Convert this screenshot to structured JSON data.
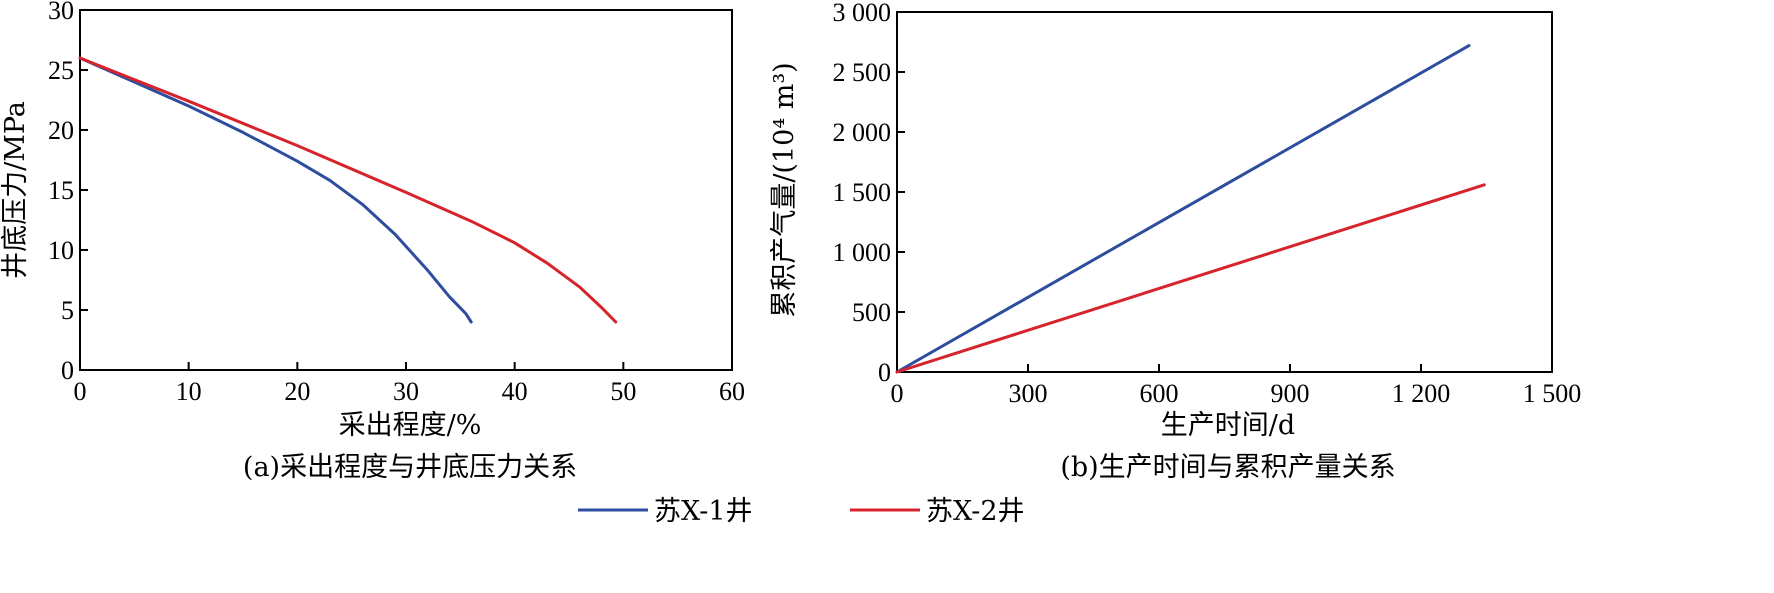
{
  "colors": {
    "series1": "#2f4d9e",
    "series2": "#d7232c"
  },
  "legend": [
    {
      "name": "苏X-1井",
      "color": "#2f4d9e"
    },
    {
      "name": "苏X-2井",
      "color": "#d7232c"
    }
  ],
  "chart_data": [
    {
      "type": "line",
      "caption": "(a)采出程度与井底压力关系",
      "xlabel": "采出程度/%",
      "ylabel": "井底压力/MPa",
      "xlim": [
        0,
        60
      ],
      "ylim": [
        0,
        30
      ],
      "xticks": [
        0,
        10,
        20,
        30,
        40,
        50,
        60
      ],
      "yticks": [
        0,
        5,
        10,
        15,
        20,
        25,
        30
      ],
      "xtick_labels": [
        "0",
        "10",
        "20",
        "30",
        "40",
        "50",
        "60"
      ],
      "ytick_labels": [
        "0",
        "5",
        "10",
        "15",
        "20",
        "25",
        "30"
      ],
      "series": [
        {
          "name": "苏X-1井",
          "x": [
            0,
            5,
            10,
            15,
            20,
            23,
            26,
            29,
            32,
            34,
            35.5,
            36
          ],
          "y": [
            26,
            24,
            22,
            19.8,
            17.4,
            15.8,
            13.8,
            11.3,
            8.3,
            6.1,
            4.7,
            4
          ]
        },
        {
          "name": "苏X-2井",
          "x": [
            0,
            10,
            20,
            30,
            36,
            40,
            43,
            46,
            48,
            49.3
          ],
          "y": [
            26,
            22.4,
            18.7,
            14.8,
            12.4,
            10.6,
            8.9,
            6.9,
            5.2,
            4
          ]
        }
      ]
    },
    {
      "type": "line",
      "caption": "(b)生产时间与累积产量关系",
      "xlabel": "生产时间/d",
      "ylabel": "累积产气量/(10⁴ m³)",
      "xlim": [
        0,
        1500
      ],
      "ylim": [
        0,
        3000
      ],
      "xticks": [
        0,
        300,
        600,
        900,
        1200,
        1500
      ],
      "yticks": [
        0,
        500,
        1000,
        1500,
        2000,
        2500,
        3000
      ],
      "xtick_labels": [
        "0",
        "300",
        "600",
        "900",
        "1 200",
        "1 500"
      ],
      "ytick_labels": [
        "0",
        "500",
        "1 000",
        "1 500",
        "2 000",
        "2 500",
        "3 000"
      ],
      "series": [
        {
          "name": "苏X-1井",
          "x": [
            0,
            1310
          ],
          "y": [
            0,
            2720
          ]
        },
        {
          "name": "苏X-2井",
          "x": [
            0,
            1345
          ],
          "y": [
            0,
            1560
          ]
        }
      ]
    }
  ]
}
